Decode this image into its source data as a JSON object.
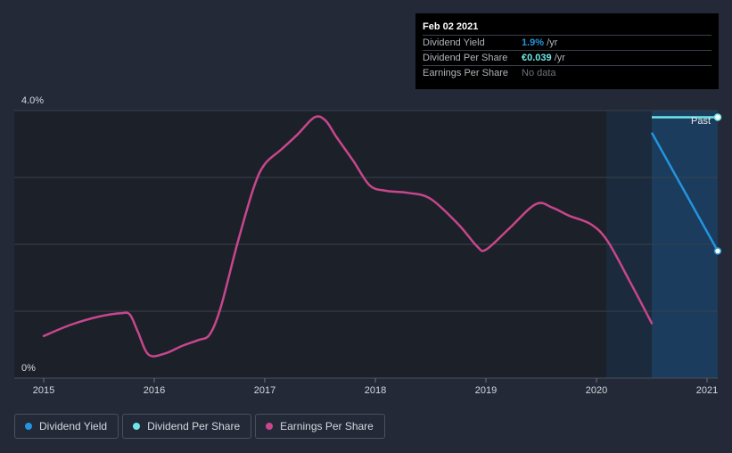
{
  "tooltip": {
    "date": "Feb 02 2021",
    "rows": [
      {
        "label": "Dividend Yield",
        "value": "1.9%",
        "unit": "/yr",
        "color": "#2394df"
      },
      {
        "label": "Dividend Per Share",
        "value": "€0.039",
        "unit": "/yr",
        "color": "#6ee6e6"
      },
      {
        "label": "Earnings Per Share",
        "value": "No data",
        "unit": "",
        "color": "#6d727b"
      }
    ]
  },
  "legend": [
    {
      "label": "Dividend Yield",
      "color": "#2394df"
    },
    {
      "label": "Dividend Per Share",
      "color": "#6ee6e6"
    },
    {
      "label": "Earnings Per Share",
      "color": "#c7468c"
    }
  ],
  "chart_data": {
    "type": "line",
    "title": "",
    "xlabel": "",
    "ylabel": "",
    "ylim": [
      0,
      4.0
    ],
    "xlim": [
      2014.75,
      2021.1
    ],
    "y_tick_labels": [
      "0%",
      "4.0%"
    ],
    "x_ticks": [
      2015,
      2016,
      2017,
      2018,
      2019,
      2020,
      2021
    ],
    "x_tick_labels": [
      "2015",
      "2016",
      "2017",
      "2018",
      "2019",
      "2020",
      "2021"
    ],
    "annotation": "Past",
    "series": [
      {
        "name": "Earnings Per Share",
        "color": "#c7468c",
        "x": [
          2015.0,
          2015.25,
          2015.5,
          2015.7,
          2015.78,
          2015.85,
          2015.95,
          2016.1,
          2016.25,
          2016.4,
          2016.5,
          2016.6,
          2016.75,
          2016.9,
          2017.0,
          2017.15,
          2017.3,
          2017.45,
          2017.55,
          2017.65,
          2017.8,
          2017.95,
          2018.1,
          2018.3,
          2018.5,
          2018.75,
          2018.92,
          2019.0,
          2019.2,
          2019.45,
          2019.6,
          2019.75,
          2019.95,
          2020.1,
          2020.3,
          2020.5
        ],
        "values": [
          0.63,
          0.8,
          0.92,
          0.97,
          0.95,
          0.7,
          0.35,
          0.37,
          0.48,
          0.57,
          0.65,
          1.05,
          2.0,
          2.85,
          3.2,
          3.42,
          3.65,
          3.9,
          3.85,
          3.6,
          3.25,
          2.88,
          2.8,
          2.77,
          2.68,
          2.3,
          1.97,
          1.92,
          2.22,
          2.6,
          2.55,
          2.43,
          2.3,
          2.05,
          1.45,
          0.82
        ]
      },
      {
        "name": "Dividend Yield",
        "color": "#2394df",
        "x": [
          2020.5,
          2021.1
        ],
        "values": [
          3.67,
          1.9
        ]
      },
      {
        "name": "Dividend Per Share",
        "color": "#6ee6e6",
        "x": [
          2020.5,
          2021.1
        ],
        "values": [
          3.9,
          3.9
        ]
      }
    ]
  }
}
